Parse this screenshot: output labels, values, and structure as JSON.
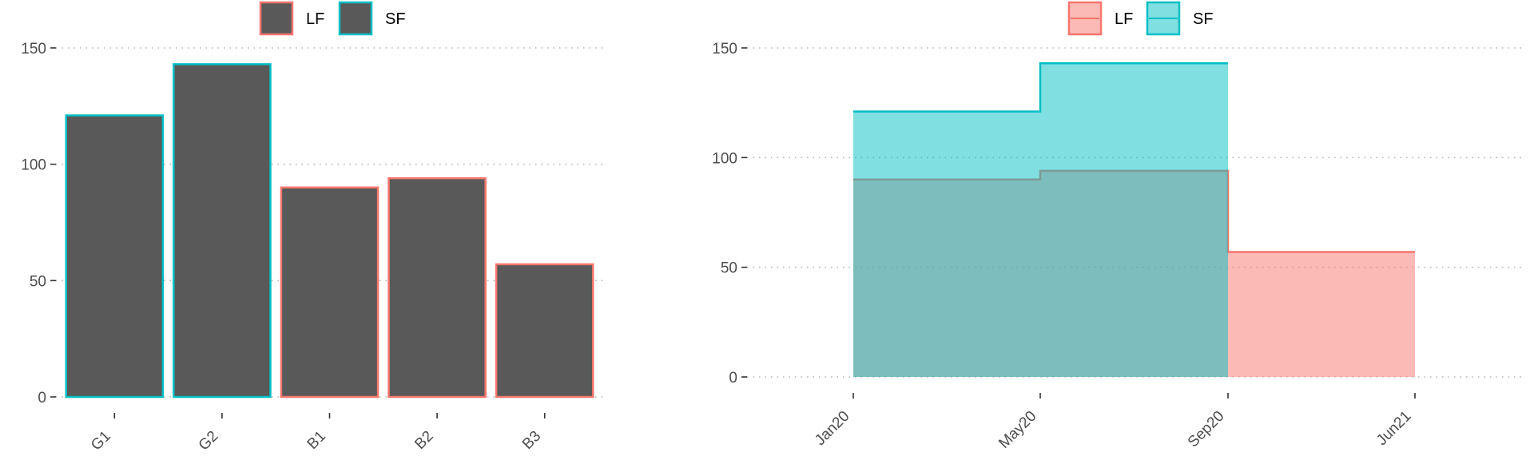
{
  "chart_data": [
    {
      "type": "bar",
      "categories": [
        "G1",
        "G2",
        "B1",
        "B2",
        "B3"
      ],
      "values": [
        121,
        143,
        90,
        94,
        57
      ],
      "groups": [
        "SF",
        "SF",
        "LF",
        "LF",
        "LF"
      ],
      "ylim": [
        0,
        150
      ],
      "yticks": [
        0,
        50,
        100,
        150
      ],
      "bar_fill": "#595959",
      "legend": {
        "position": "top",
        "entries": [
          "LF",
          "SF"
        ]
      },
      "colors": {
        "LF": "#f8766d",
        "SF": "#00bfc4"
      },
      "grid": "horizontal-dotted"
    },
    {
      "type": "area",
      "step": true,
      "x_ticks": [
        "Jan20",
        "May20",
        "Sep20",
        "Jun21"
      ],
      "series": [
        {
          "name": "LF",
          "x": [
            "Jan20",
            "May20",
            "Sep20",
            "Jun21"
          ],
          "values": [
            90,
            94,
            57,
            57
          ]
        },
        {
          "name": "SF",
          "x": [
            "Jan20",
            "May20",
            "Sep20"
          ],
          "values": [
            121,
            143,
            143
          ]
        }
      ],
      "ylim": [
        0,
        150
      ],
      "yticks": [
        0,
        50,
        100,
        150
      ],
      "legend": {
        "position": "top",
        "entries": [
          "LF",
          "SF"
        ]
      },
      "colors": {
        "LF": "#f8766d",
        "SF": "#00bfc4"
      },
      "grid": "horizontal-dotted"
    }
  ]
}
